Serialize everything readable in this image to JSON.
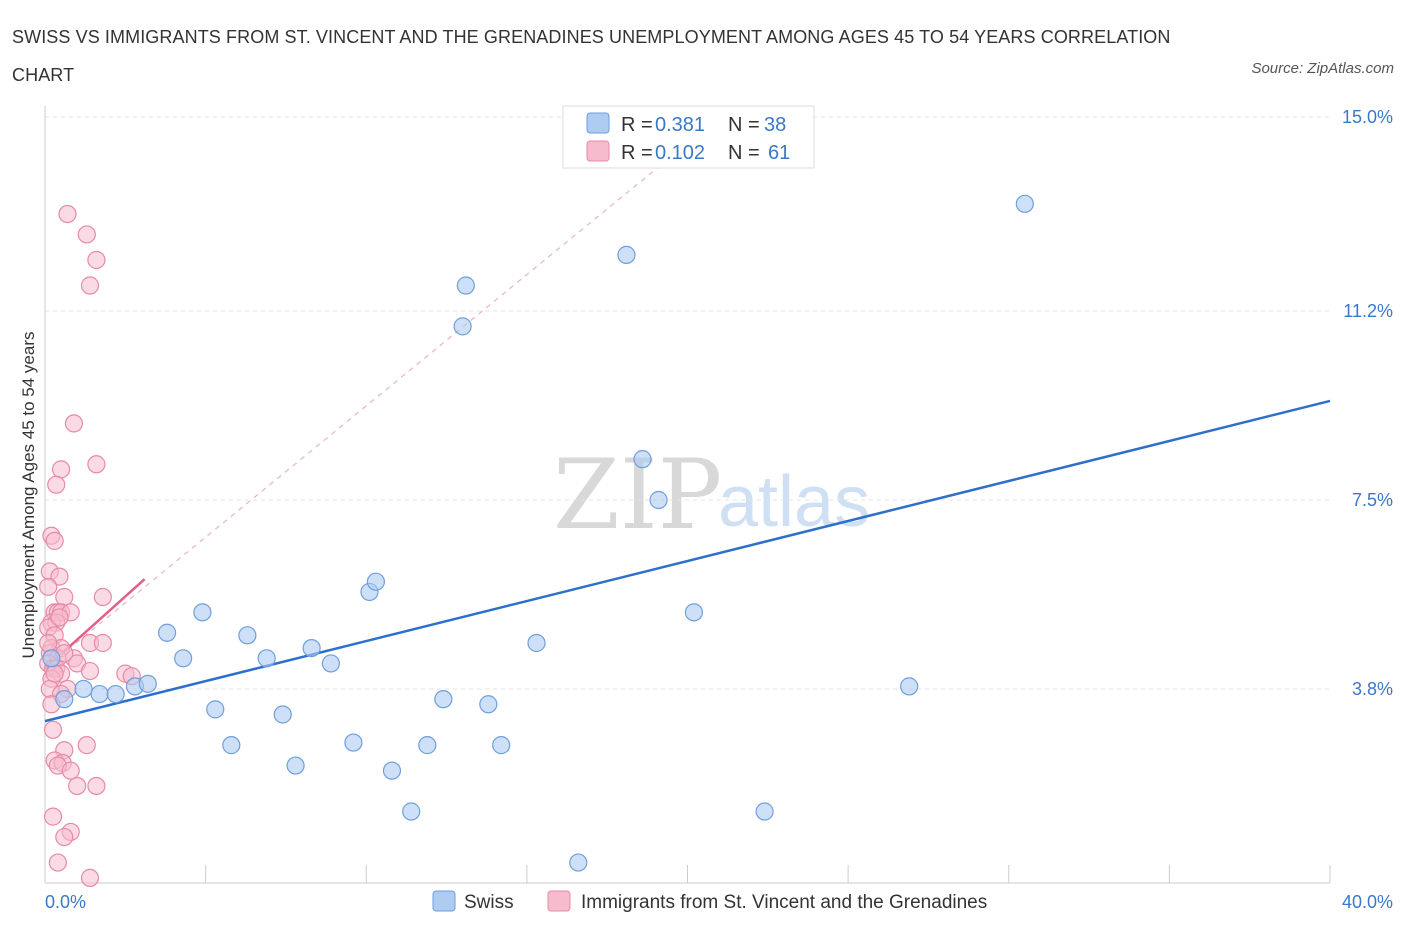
{
  "title": "SWISS VS IMMIGRANTS FROM ST. VINCENT AND THE GRENADINES UNEMPLOYMENT AMONG AGES 45 TO 54 YEARS CORRELATION CHART",
  "source": "Source: ZipAtlas.com",
  "watermark": {
    "zip": "ZIP",
    "atlas": "atlas"
  },
  "legend": {
    "swiss": {
      "r_label": "R = ",
      "r_value": "0.381",
      "n_label": "N = ",
      "n_value": "38"
    },
    "svg": {
      "r_label": "R = ",
      "r_value": "0.102",
      "n_label": "N = ",
      "n_value": "61"
    }
  },
  "bottom_legend": {
    "swiss": "Swiss",
    "svg": "Immigrants from St. Vincent and the Grenadines"
  },
  "colors": {
    "swiss_fill": "#aecbf2",
    "swiss_stroke": "#6f9fdc",
    "swiss_line": "#2f6fcc",
    "svg_fill": "#f6bccd",
    "svg_stroke": "#e88aa6",
    "svg_line": "#e0608a",
    "tick": "#3a78c9"
  },
  "chart_data": {
    "type": "scatter",
    "xlabel": "",
    "ylabel": "Unemployment Among Ages 45 to 54 years",
    "xlim": [
      0,
      40
    ],
    "ylim": [
      0,
      15
    ],
    "x_tick_labels": [
      "0.0%",
      "40.0%"
    ],
    "y_ticks": [
      3.8,
      7.5,
      11.2,
      15.0
    ],
    "y_tick_labels": [
      "3.8%",
      "7.5%",
      "11.2%",
      "15.0%"
    ],
    "grid": "horizontal dashed",
    "legend_position": "top-center",
    "series": [
      {
        "name": "Swiss",
        "R": 0.381,
        "N": 38,
        "points": [
          [
            0.6,
            3.6
          ],
          [
            1.2,
            3.8
          ],
          [
            1.7,
            3.7
          ],
          [
            2.2,
            3.7
          ],
          [
            2.8,
            3.85
          ],
          [
            3.2,
            3.9
          ],
          [
            3.8,
            4.9
          ],
          [
            4.3,
            4.4
          ],
          [
            4.9,
            5.3
          ],
          [
            5.3,
            3.4
          ],
          [
            5.8,
            2.7
          ],
          [
            6.3,
            4.85
          ],
          [
            6.9,
            4.4
          ],
          [
            7.4,
            3.3
          ],
          [
            7.8,
            2.3
          ],
          [
            8.3,
            4.6
          ],
          [
            8.9,
            4.3
          ],
          [
            9.6,
            2.75
          ],
          [
            10.1,
            5.7
          ],
          [
            10.3,
            5.9
          ],
          [
            10.8,
            2.2
          ],
          [
            11.4,
            1.4
          ],
          [
            11.9,
            2.7
          ],
          [
            12.4,
            3.6
          ],
          [
            13.0,
            10.9
          ],
          [
            13.1,
            11.7
          ],
          [
            13.8,
            3.5
          ],
          [
            14.2,
            2.7
          ],
          [
            15.3,
            4.7
          ],
          [
            16.6,
            0.4
          ],
          [
            18.1,
            12.3
          ],
          [
            18.6,
            8.3
          ],
          [
            19.1,
            7.5
          ],
          [
            20.2,
            5.3
          ],
          [
            22.4,
            1.4
          ],
          [
            26.9,
            3.85
          ],
          [
            30.5,
            13.3
          ],
          [
            0.2,
            4.4
          ]
        ],
        "trend": {
          "x": [
            0,
            40
          ],
          "y": [
            3.17,
            9.44
          ]
        }
      },
      {
        "name": "Immigrants from St. Vincent and the Grenadines",
        "R": 0.102,
        "N": 61,
        "points": [
          [
            0.7,
            13.1
          ],
          [
            1.3,
            12.7
          ],
          [
            1.6,
            12.2
          ],
          [
            1.4,
            11.7
          ],
          [
            0.9,
            9.0
          ],
          [
            1.6,
            8.2
          ],
          [
            0.5,
            8.1
          ],
          [
            0.35,
            7.8
          ],
          [
            0.2,
            6.8
          ],
          [
            0.3,
            6.7
          ],
          [
            0.15,
            6.1
          ],
          [
            0.45,
            6.0
          ],
          [
            0.1,
            5.8
          ],
          [
            1.8,
            5.6
          ],
          [
            0.6,
            5.6
          ],
          [
            0.3,
            5.3
          ],
          [
            0.4,
            5.3
          ],
          [
            0.5,
            5.3
          ],
          [
            0.8,
            5.3
          ],
          [
            0.2,
            5.1
          ],
          [
            0.35,
            5.1
          ],
          [
            0.1,
            5.0
          ],
          [
            0.3,
            4.85
          ],
          [
            1.4,
            4.7
          ],
          [
            1.8,
            4.7
          ],
          [
            0.2,
            4.6
          ],
          [
            0.5,
            4.6
          ],
          [
            0.15,
            4.5
          ],
          [
            0.4,
            4.4
          ],
          [
            0.9,
            4.4
          ],
          [
            1.0,
            4.3
          ],
          [
            0.1,
            4.3
          ],
          [
            0.25,
            4.2
          ],
          [
            0.35,
            4.2
          ],
          [
            0.5,
            4.1
          ],
          [
            1.4,
            4.15
          ],
          [
            2.5,
            4.1
          ],
          [
            2.7,
            4.05
          ],
          [
            0.2,
            4.0
          ],
          [
            0.15,
            3.8
          ],
          [
            0.7,
            3.8
          ],
          [
            0.5,
            3.7
          ],
          [
            0.25,
            3.0
          ],
          [
            1.3,
            2.7
          ],
          [
            0.6,
            2.6
          ],
          [
            0.3,
            2.4
          ],
          [
            0.55,
            2.35
          ],
          [
            0.4,
            2.3
          ],
          [
            1.6,
            1.9
          ],
          [
            1.0,
            1.9
          ],
          [
            0.25,
            1.3
          ],
          [
            0.8,
            1.0
          ],
          [
            0.6,
            0.9
          ],
          [
            0.4,
            0.4
          ],
          [
            1.4,
            0.1
          ],
          [
            0.2,
            3.5
          ],
          [
            0.6,
            4.5
          ],
          [
            0.3,
            4.1
          ],
          [
            0.8,
            2.2
          ],
          [
            0.45,
            5.2
          ],
          [
            0.1,
            4.7
          ]
        ],
        "trend": {
          "x": [
            0,
            3.1
          ],
          "y": [
            4.2,
            5.95
          ]
        },
        "trend_extended": {
          "x": [
            0,
            21
          ],
          "y": [
            4.2,
            15.0
          ]
        }
      }
    ]
  }
}
